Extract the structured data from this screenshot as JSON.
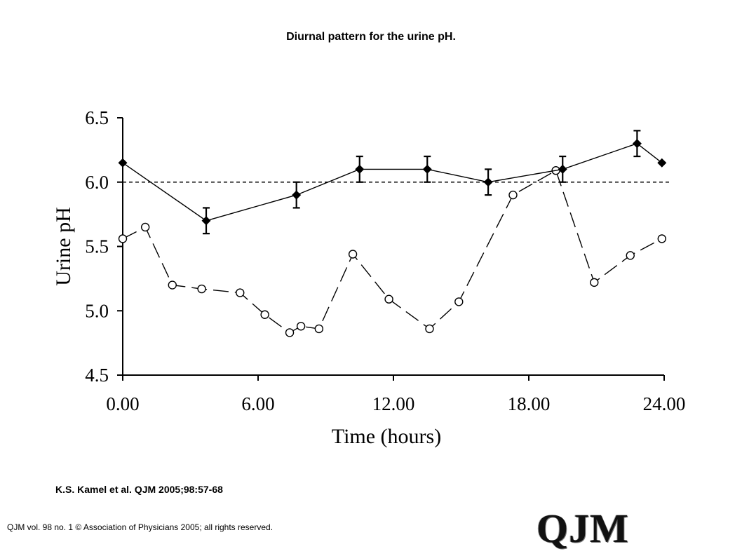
{
  "header": {
    "title": "Diurnal pattern for the urine pH."
  },
  "footer": {
    "citation": "K.S. Kamel et al. QJM 2005;98:57-68",
    "copyright": "QJM vol. 98 no. 1 © Association of Physicians 2005; all rights reserved.",
    "logo_text": "QJM"
  },
  "chart_data": {
    "type": "line",
    "xlabel": "Time (hours)",
    "ylabel": "Urine pH",
    "xlim": [
      0,
      24
    ],
    "ylim": [
      4.5,
      6.5
    ],
    "x_ticks": [
      "0.00",
      "6.00",
      "12.00",
      "18.00",
      "24.00"
    ],
    "x_tick_values": [
      0,
      6,
      12,
      18,
      24
    ],
    "y_ticks": [
      "4.5",
      "5.0",
      "5.5",
      "6.0",
      "6.5"
    ],
    "y_tick_values": [
      4.5,
      5.0,
      5.5,
      6.0,
      6.5
    ],
    "grid": false,
    "reference_line": {
      "y": 6.0,
      "style": "dashed"
    },
    "series": [
      {
        "marker": "filled-diamond",
        "line_style": "solid",
        "points": [
          {
            "x": 0.0,
            "y": 6.15
          },
          {
            "x": 3.7,
            "y": 5.7,
            "err": 0.1
          },
          {
            "x": 7.7,
            "y": 5.9,
            "err": 0.1
          },
          {
            "x": 10.5,
            "y": 6.1,
            "err": 0.1
          },
          {
            "x": 13.5,
            "y": 6.1,
            "err": 0.1
          },
          {
            "x": 16.2,
            "y": 6.0,
            "err": 0.1
          },
          {
            "x": 19.5,
            "y": 6.1,
            "err": 0.1
          },
          {
            "x": 22.8,
            "y": 6.3,
            "err": 0.1
          },
          {
            "x": 23.9,
            "y": 6.15
          }
        ]
      },
      {
        "marker": "open-circle",
        "line_style": "long-dash",
        "points": [
          {
            "x": 0.0,
            "y": 5.56
          },
          {
            "x": 1.0,
            "y": 5.65
          },
          {
            "x": 2.2,
            "y": 5.2
          },
          {
            "x": 3.5,
            "y": 5.17
          },
          {
            "x": 5.2,
            "y": 5.14
          },
          {
            "x": 6.3,
            "y": 4.97
          },
          {
            "x": 7.4,
            "y": 4.83
          },
          {
            "x": 7.9,
            "y": 4.88
          },
          {
            "x": 8.7,
            "y": 4.86
          },
          {
            "x": 10.2,
            "y": 5.44
          },
          {
            "x": 11.8,
            "y": 5.09
          },
          {
            "x": 13.6,
            "y": 4.86
          },
          {
            "x": 14.9,
            "y": 5.07
          },
          {
            "x": 17.3,
            "y": 5.9
          },
          {
            "x": 19.2,
            "y": 6.09
          },
          {
            "x": 20.9,
            "y": 5.22
          },
          {
            "x": 22.5,
            "y": 5.43
          },
          {
            "x": 23.9,
            "y": 5.56
          }
        ]
      }
    ]
  }
}
